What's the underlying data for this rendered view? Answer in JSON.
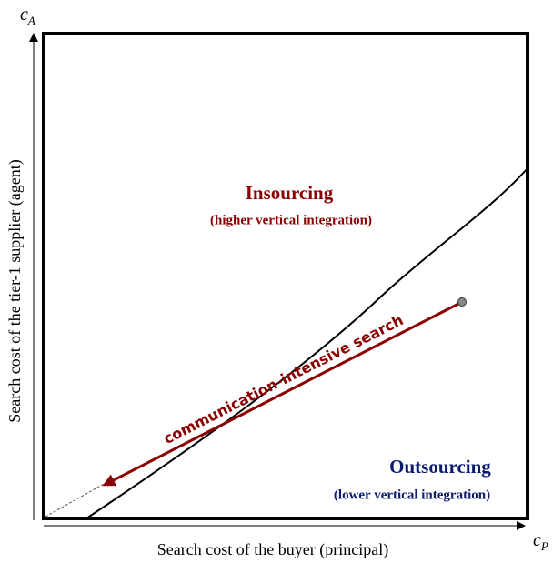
{
  "axes": {
    "y": {
      "symbol": "c",
      "subscript": "A",
      "label": "Search cost of the tier-1 supplier  (agent)"
    },
    "x": {
      "symbol": "c",
      "subscript": "P",
      "label": "Search cost of the buyer (principal)"
    }
  },
  "regions": [
    {
      "title": "Insourcing",
      "subtitle": "(higher vertical integration)"
    },
    {
      "title": "Outsourcing",
      "subtitle": "(lower vertical integration)"
    }
  ],
  "arrow_label": "communication-intensive search"
}
